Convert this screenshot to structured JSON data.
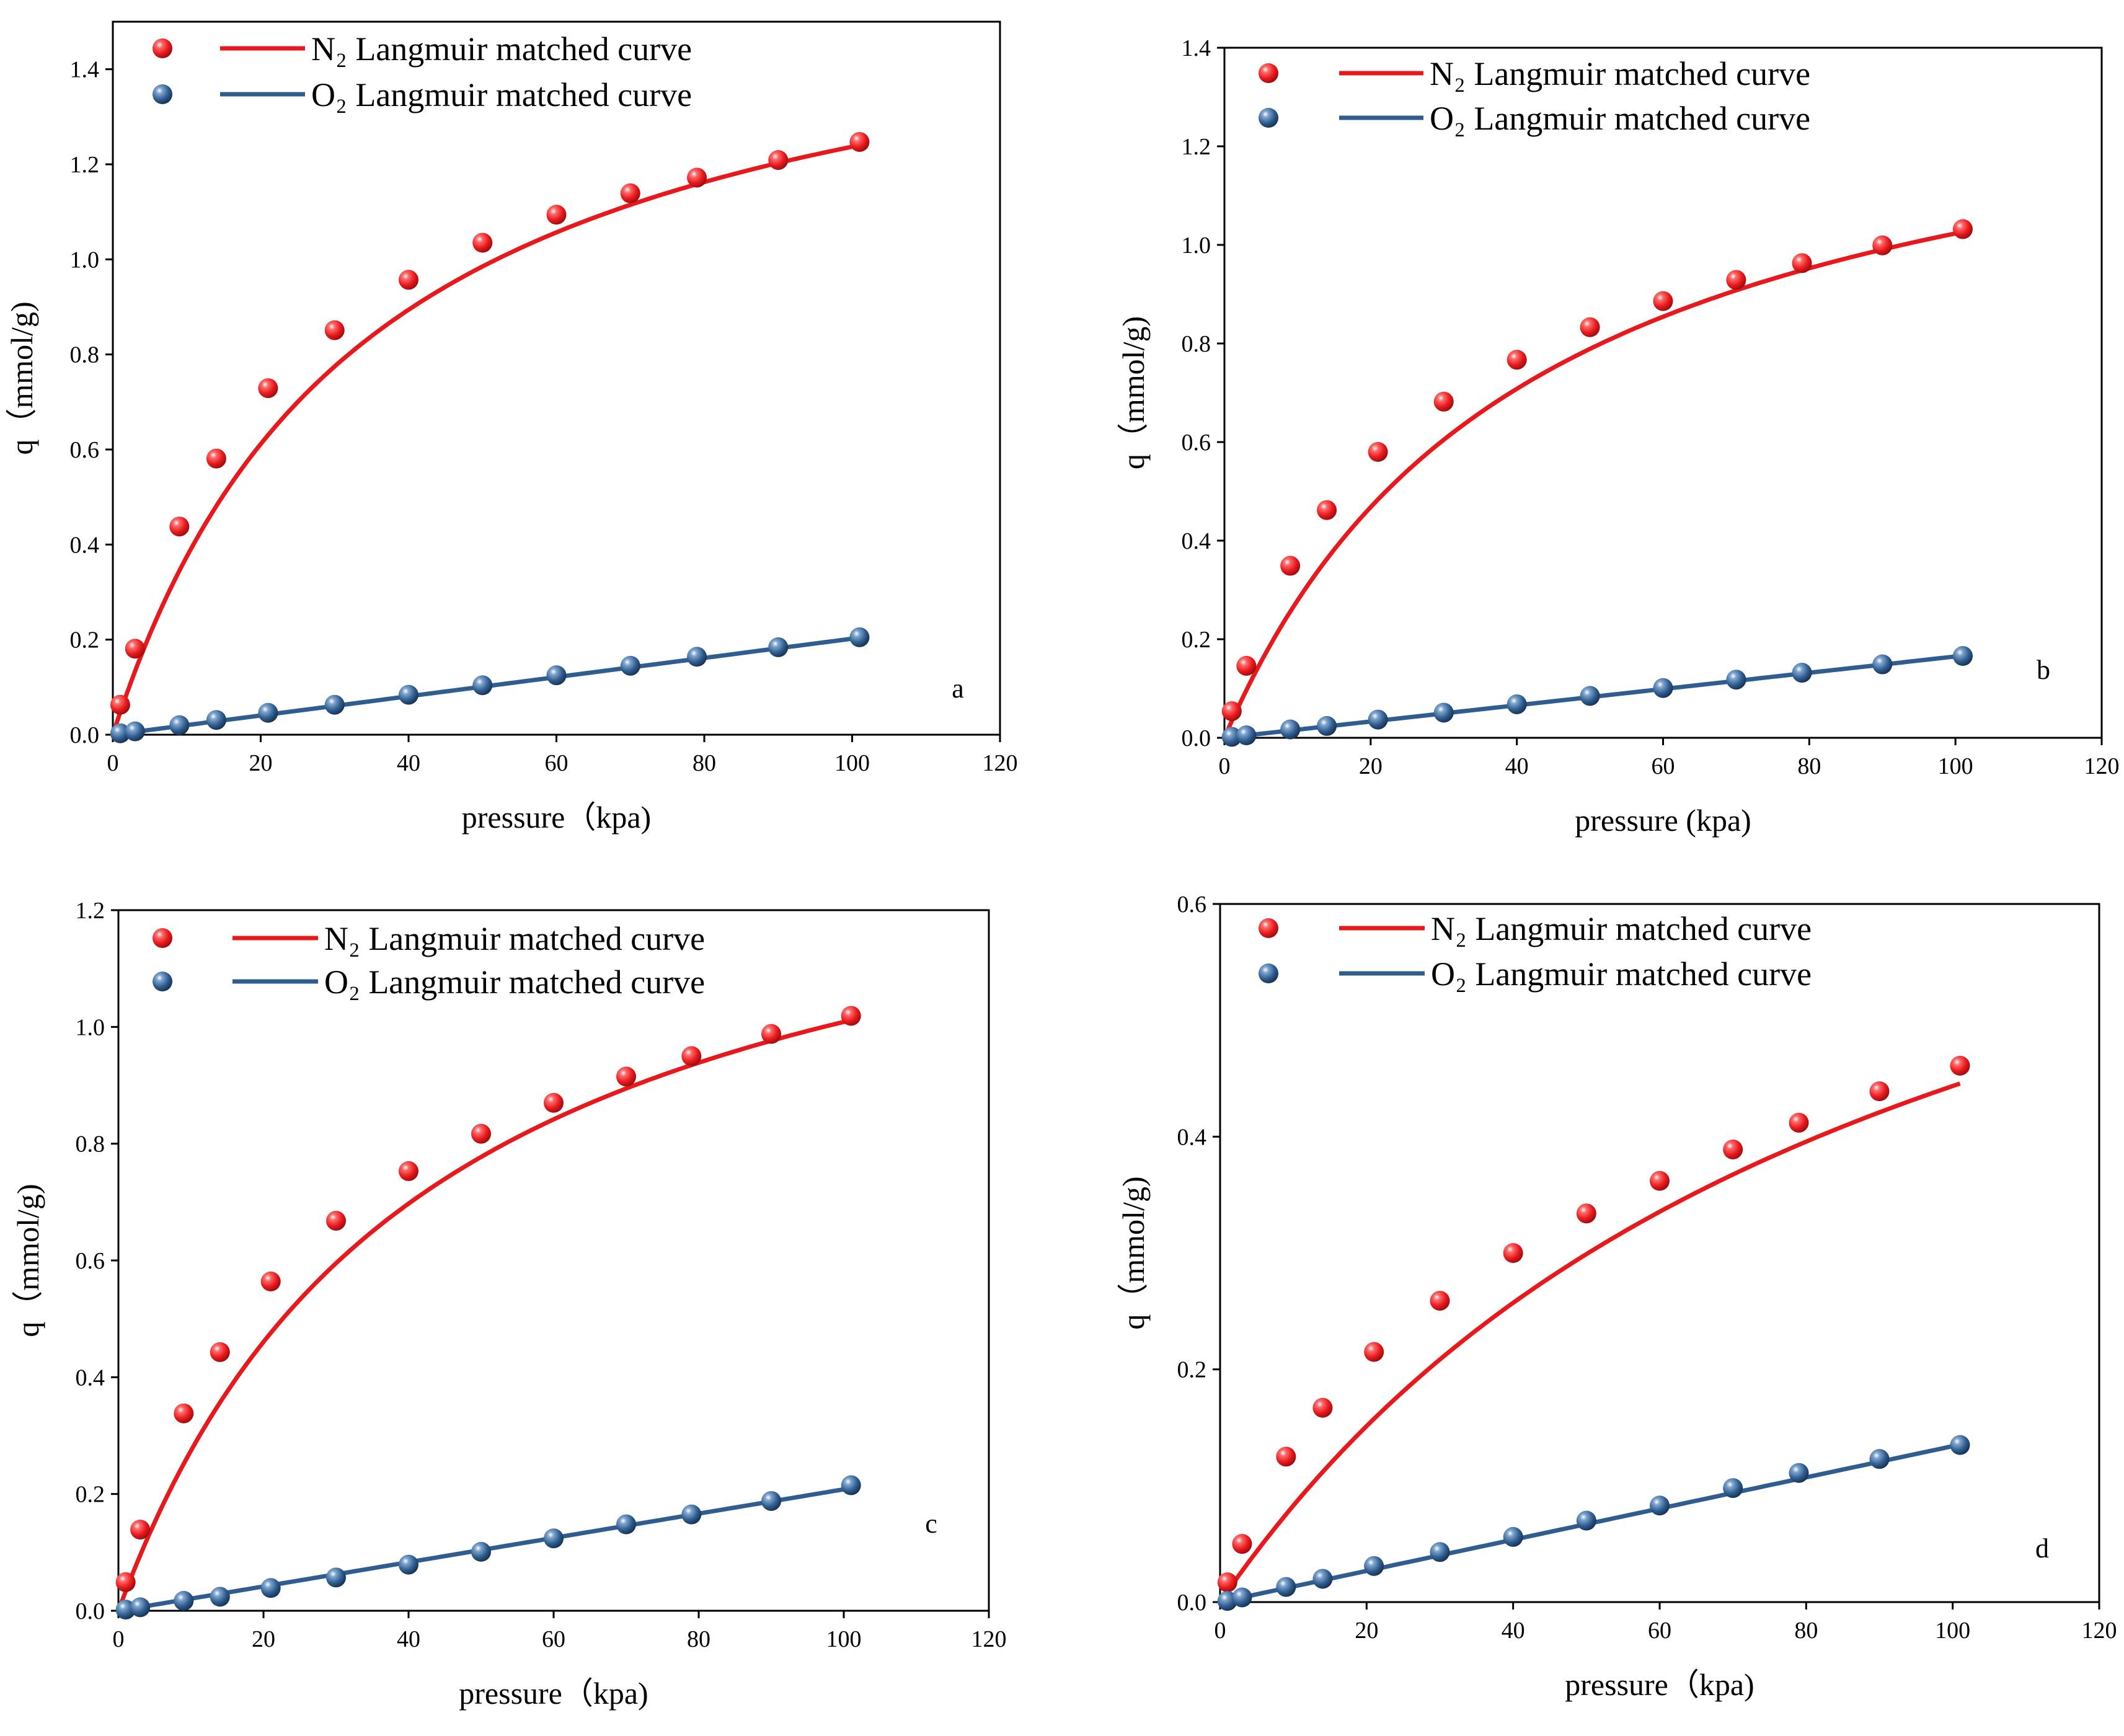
{
  "chart_data": [
    {
      "type": "scatter",
      "panel": "a",
      "title": "",
      "xlabel": "pressure（kpa)",
      "ylabel": "q（mmol/g)",
      "xlim": [
        0,
        120
      ],
      "ylim": [
        0,
        1.5
      ],
      "xticks": [
        0,
        20,
        40,
        60,
        80,
        100,
        120
      ],
      "yticks": [
        0.0,
        0.2,
        0.4,
        0.6,
        0.8,
        1.0,
        1.2,
        1.4
      ],
      "ytick_decimals": 1,
      "legend": {
        "placement": "top-left",
        "entries": [
          "N₂ Langmuir matched curve",
          "O₂ Langmuir matched curve"
        ]
      },
      "series": [
        {
          "name": "N₂",
          "color": "#e8191c",
          "x": [
            1,
            3,
            9,
            14,
            21,
            30,
            40,
            50,
            60,
            70,
            79,
            90,
            101
          ],
          "y": [
            0.063,
            0.181,
            0.438,
            0.581,
            0.729,
            0.851,
            0.957,
            1.035,
            1.094,
            1.139,
            1.172,
            1.209,
            1.247
          ],
          "fit": {
            "qm": 1.662,
            "b": 0.0291
          }
        },
        {
          "name": "O₂",
          "color": "#2f5d8f",
          "x": [
            1,
            3,
            9,
            14,
            21,
            30,
            40,
            50,
            60,
            70,
            79,
            90,
            101
          ],
          "y": [
            0.003,
            0.007,
            0.02,
            0.031,
            0.046,
            0.063,
            0.084,
            0.104,
            0.125,
            0.145,
            0.164,
            0.184,
            0.205
          ],
          "fit": {
            "slope": 0.00202
          }
        }
      ]
    },
    {
      "type": "scatter",
      "panel": "b",
      "title": "",
      "xlabel": "pressure (kpa)",
      "ylabel": "q（mmol/g)",
      "xlim": [
        0,
        120
      ],
      "ylim": [
        0,
        1.4
      ],
      "xticks": [
        0,
        20,
        40,
        60,
        80,
        100,
        120
      ],
      "yticks": [
        0.0,
        0.2,
        0.4,
        0.6,
        0.8,
        1.0,
        1.2,
        1.4
      ],
      "ytick_decimals": 1,
      "legend": {
        "placement": "top-right",
        "entries": [
          "N₂  Langmuir matched curve",
          "O₂  Langmuir matched curve"
        ]
      },
      "series": [
        {
          "name": "N₂",
          "color": "#e8191c",
          "x": [
            1,
            3,
            9,
            14,
            21,
            30,
            40,
            50,
            60,
            70,
            79,
            90,
            101
          ],
          "y": [
            0.054,
            0.146,
            0.349,
            0.462,
            0.58,
            0.682,
            0.767,
            0.833,
            0.886,
            0.929,
            0.963,
            0.999,
            1.032
          ],
          "fit": {
            "qm": 1.455,
            "b": 0.0237
          }
        },
        {
          "name": "O₂",
          "color": "#2f5d8f",
          "x": [
            1,
            3,
            9,
            14,
            21,
            30,
            40,
            50,
            60,
            70,
            79,
            90,
            101
          ],
          "y": [
            0.002,
            0.005,
            0.017,
            0.024,
            0.037,
            0.051,
            0.068,
            0.085,
            0.101,
            0.118,
            0.132,
            0.149,
            0.166
          ],
          "fit": {
            "slope": 0.00165
          }
        }
      ]
    },
    {
      "type": "scatter",
      "panel": "c",
      "title": "",
      "xlabel": "pressure（kpa)",
      "ylabel": "q（mmol/g)",
      "xlim": [
        0,
        120
      ],
      "ylim": [
        0,
        1.2
      ],
      "xticks": [
        0,
        20,
        40,
        60,
        80,
        100,
        120
      ],
      "yticks": [
        0.0,
        0.2,
        0.4,
        0.6,
        0.8,
        1.0,
        1.2
      ],
      "ytick_decimals": 1,
      "legend": {
        "placement": "top-left",
        "entries": [
          "N₂  Langmuir matched curve",
          "O₂  Langmuir matched curve"
        ]
      },
      "series": [
        {
          "name": "N₂",
          "color": "#e8191c",
          "x": [
            1,
            3,
            9,
            14,
            21,
            30,
            40,
            50,
            60,
            70,
            79,
            90,
            101
          ],
          "y": [
            0.049,
            0.139,
            0.338,
            0.443,
            0.564,
            0.668,
            0.753,
            0.817,
            0.87,
            0.915,
            0.95,
            0.988,
            1.019
          ],
          "fit": {
            "qm": 1.436,
            "b": 0.0236
          }
        },
        {
          "name": "O₂",
          "color": "#2f5d8f",
          "x": [
            1,
            3,
            9,
            14,
            21,
            30,
            40,
            50,
            60,
            70,
            79,
            90,
            101
          ],
          "y": [
            0.002,
            0.006,
            0.017,
            0.024,
            0.039,
            0.057,
            0.079,
            0.101,
            0.124,
            0.148,
            0.165,
            0.188,
            0.215
          ],
          "fit": {
            "slope": 0.00208
          }
        }
      ]
    },
    {
      "type": "scatter",
      "panel": "d",
      "title": "",
      "xlabel": "pressure（kpa)",
      "ylabel": "q（mmol/g)",
      "xlim": [
        0,
        120
      ],
      "ylim": [
        0,
        0.6
      ],
      "xticks": [
        0,
        20,
        40,
        60,
        80,
        100,
        120
      ],
      "yticks": [
        0.0,
        0.2,
        0.4,
        0.6
      ],
      "ytick_decimals": 1,
      "legend": {
        "placement": "top-right",
        "entries": [
          "N₂  Langmuir matched curve",
          "O₂  Langmuir matched curve"
        ]
      },
      "series": [
        {
          "name": "N₂",
          "color": "#e8191c",
          "x": [
            1,
            3,
            9,
            14,
            21,
            30,
            40,
            50,
            60,
            70,
            79,
            90,
            101
          ],
          "y": [
            0.017,
            0.05,
            0.125,
            0.167,
            0.215,
            0.259,
            0.3,
            0.334,
            0.362,
            0.389,
            0.412,
            0.439,
            0.461
          ],
          "fit": {
            "qm": 0.858,
            "b": 0.0107
          }
        },
        {
          "name": "O₂",
          "color": "#2f5d8f",
          "x": [
            1,
            3,
            9,
            14,
            21,
            30,
            40,
            50,
            60,
            70,
            79,
            90,
            101
          ],
          "y": [
            0.001,
            0.004,
            0.013,
            0.02,
            0.031,
            0.043,
            0.056,
            0.07,
            0.083,
            0.098,
            0.111,
            0.123,
            0.135
          ],
          "fit": {
            "slope": 0.00134
          }
        }
      ]
    }
  ]
}
